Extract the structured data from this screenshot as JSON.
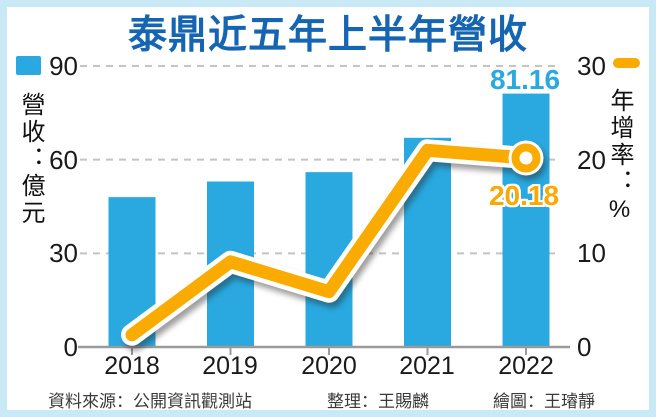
{
  "title": "泰鼎近五年上半年營收",
  "axes": {
    "left_label": "營收：億元",
    "right_label": "年增率：%",
    "left_ticks": [
      "90",
      "60",
      "30",
      "0"
    ],
    "right_ticks": [
      "30",
      "20",
      "10",
      "0"
    ]
  },
  "annotations": {
    "revenue_2022": "81.16",
    "growth_2022": "20.18"
  },
  "footer": {
    "source": "資料來源：公開資訊觀測站",
    "compiled": "整理：王賜麟",
    "drawn": "繪圖：王璿靜"
  },
  "colors": {
    "bar": "#29A9E0",
    "line": "#F9AB00",
    "title": "#1565B2",
    "frame": "#C9E9F7",
    "grid": "#C4C4C4",
    "axis": "#9A9A9A"
  },
  "chart_data": {
    "type": "bar+line",
    "title": "泰鼎近五年上半年營收",
    "categories": [
      "2018",
      "2019",
      "2020",
      "2021",
      "2022"
    ],
    "series": [
      {
        "name": "營收（億元）",
        "type": "bar",
        "axis": "left",
        "values": [
          48,
          53,
          56,
          67,
          81.16
        ]
      },
      {
        "name": "年增率（%）",
        "type": "line",
        "axis": "right",
        "values": [
          1.3,
          9.1,
          5.9,
          21,
          20.18
        ]
      }
    ],
    "y_left": {
      "label": "營收：億元",
      "range": [
        0,
        90
      ],
      "ticks": [
        0,
        30,
        60,
        90
      ]
    },
    "y_right": {
      "label": "年增率：%",
      "range": [
        0,
        30
      ],
      "ticks": [
        0,
        10,
        20,
        30
      ]
    },
    "grid": "horizontal dashed",
    "legend_position": "top-left and top-right swatches",
    "data_labels": {
      "bar_2022": "81.16",
      "line_2022": "20.18"
    }
  }
}
